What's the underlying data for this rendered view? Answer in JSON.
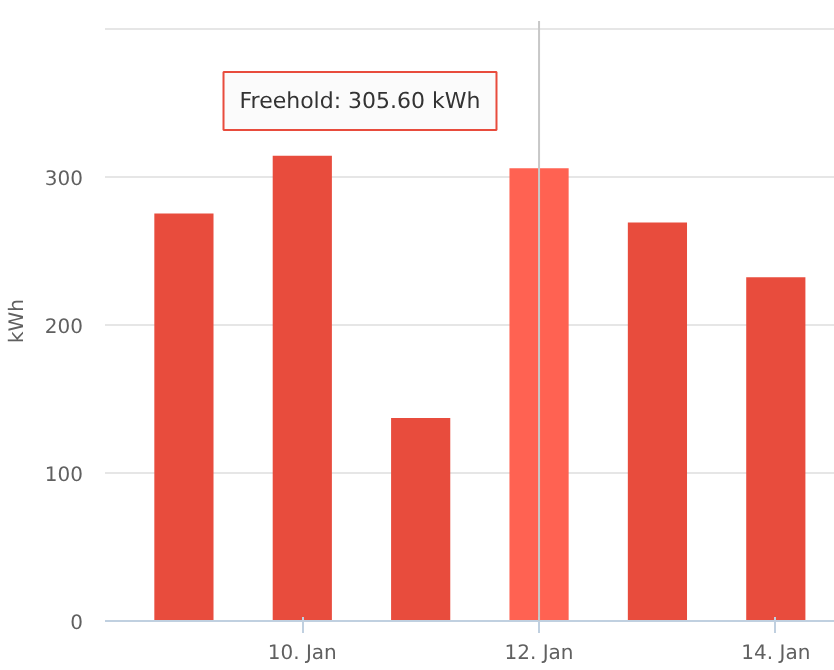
{
  "chart_data": {
    "type": "bar",
    "ylabel": "kWh",
    "x": [
      "--01-09",
      "--01-10",
      "--01-11",
      "--01-12",
      "--01-13",
      "--01-14"
    ],
    "values": [
      275,
      314,
      137,
      305.6,
      269,
      232
    ],
    "colors": [
      "#e84c3d",
      "#e84c3d",
      "#e84c3d",
      "#ff6252",
      "#e84c3d",
      "#e84c3d"
    ],
    "xlim": [
      "--01-08T08:00",
      "--01-14T12:00"
    ],
    "xticks": [
      {
        "value": "--01-10",
        "label": "10. Jan"
      },
      {
        "value": "--01-12",
        "label": "12. Jan"
      },
      {
        "value": "--01-14",
        "label": "14. Jan"
      }
    ],
    "ylim": [
      0,
      405
    ],
    "yticks": [
      0,
      100,
      200,
      300,
      {
        "value": 400,
        "label": null
      }
    ],
    "ref_lines": [
      {
        "axis": "x",
        "value": "--01-12",
        "color": "#c8c8c8"
      }
    ],
    "annotations": [
      "Freehold: 305.60 kWh"
    ],
    "grid": "y"
  }
}
